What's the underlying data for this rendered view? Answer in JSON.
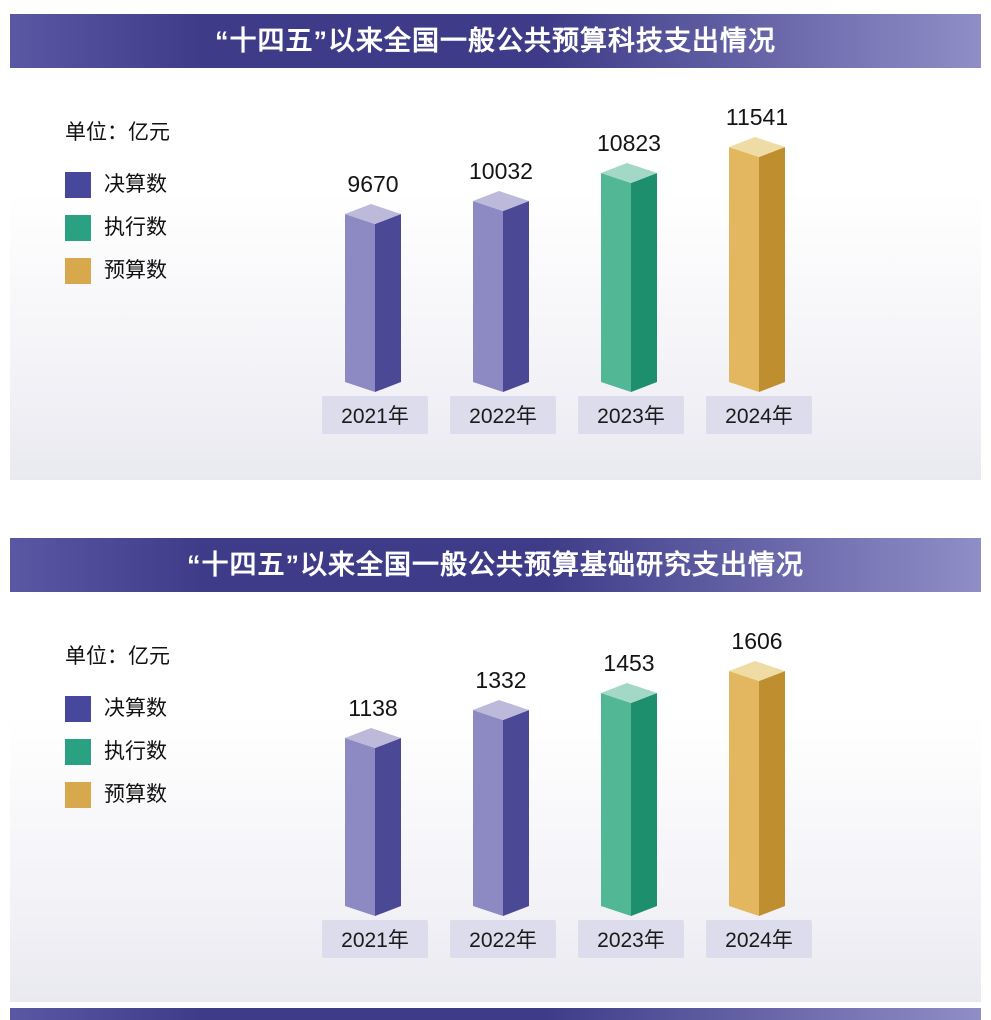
{
  "colors": {
    "title_bar": [
      "#5a58a3",
      "#3e3c88",
      "#908ec7"
    ],
    "year_box": "#dcdcec",
    "value_text": "#141414",
    "year_text": "#1a1a1a"
  },
  "chart_data": [
    {
      "type": "bar",
      "title": "“十四五”以来全国一般公共预算科技支出情况",
      "unit": "单位：亿元",
      "categories": [
        "2021年",
        "2022年",
        "2023年",
        "2024年"
      ],
      "values": [
        9670,
        10032,
        10823,
        11541
      ],
      "series_by_category": [
        "决算数",
        "决算数",
        "执行数",
        "预算数"
      ],
      "legend": [
        {
          "label": "决算数",
          "swatch": "#47479b",
          "faces": {
            "front": "#8d89c3",
            "side": "#4b4896",
            "top": "#bcb9da"
          }
        },
        {
          "label": "执行数",
          "swatch": "#2aa183",
          "faces": {
            "front": "#52b795",
            "side": "#1e8f6d",
            "top": "#a3d8c6"
          }
        },
        {
          "label": "预算数",
          "swatch": "#d8a84d",
          "faces": {
            "front": "#e3b75f",
            "side": "#bf8e2e",
            "top": "#efdca4"
          }
        }
      ],
      "ylim": [
        0,
        11541
      ],
      "grid": false,
      "legend_position": "left",
      "value_labels": true
    },
    {
      "type": "bar",
      "title": "“十四五”以来全国一般公共预算基础研究支出情况",
      "unit": "单位：亿元",
      "categories": [
        "2021年",
        "2022年",
        "2023年",
        "2024年"
      ],
      "values": [
        1138,
        1332,
        1453,
        1606
      ],
      "series_by_category": [
        "决算数",
        "决算数",
        "执行数",
        "预算数"
      ],
      "legend": [
        {
          "label": "决算数",
          "swatch": "#47479b",
          "faces": {
            "front": "#8d89c3",
            "side": "#4b4896",
            "top": "#bcb9da"
          }
        },
        {
          "label": "执行数",
          "swatch": "#2aa183",
          "faces": {
            "front": "#52b795",
            "side": "#1e8f6d",
            "top": "#a3d8c6"
          }
        },
        {
          "label": "预算数",
          "swatch": "#d8a84d",
          "faces": {
            "front": "#e3b75f",
            "side": "#bf8e2e",
            "top": "#efdca4"
          }
        }
      ],
      "ylim": [
        0,
        1606
      ],
      "grid": false,
      "legend_position": "left",
      "value_labels": true
    }
  ]
}
